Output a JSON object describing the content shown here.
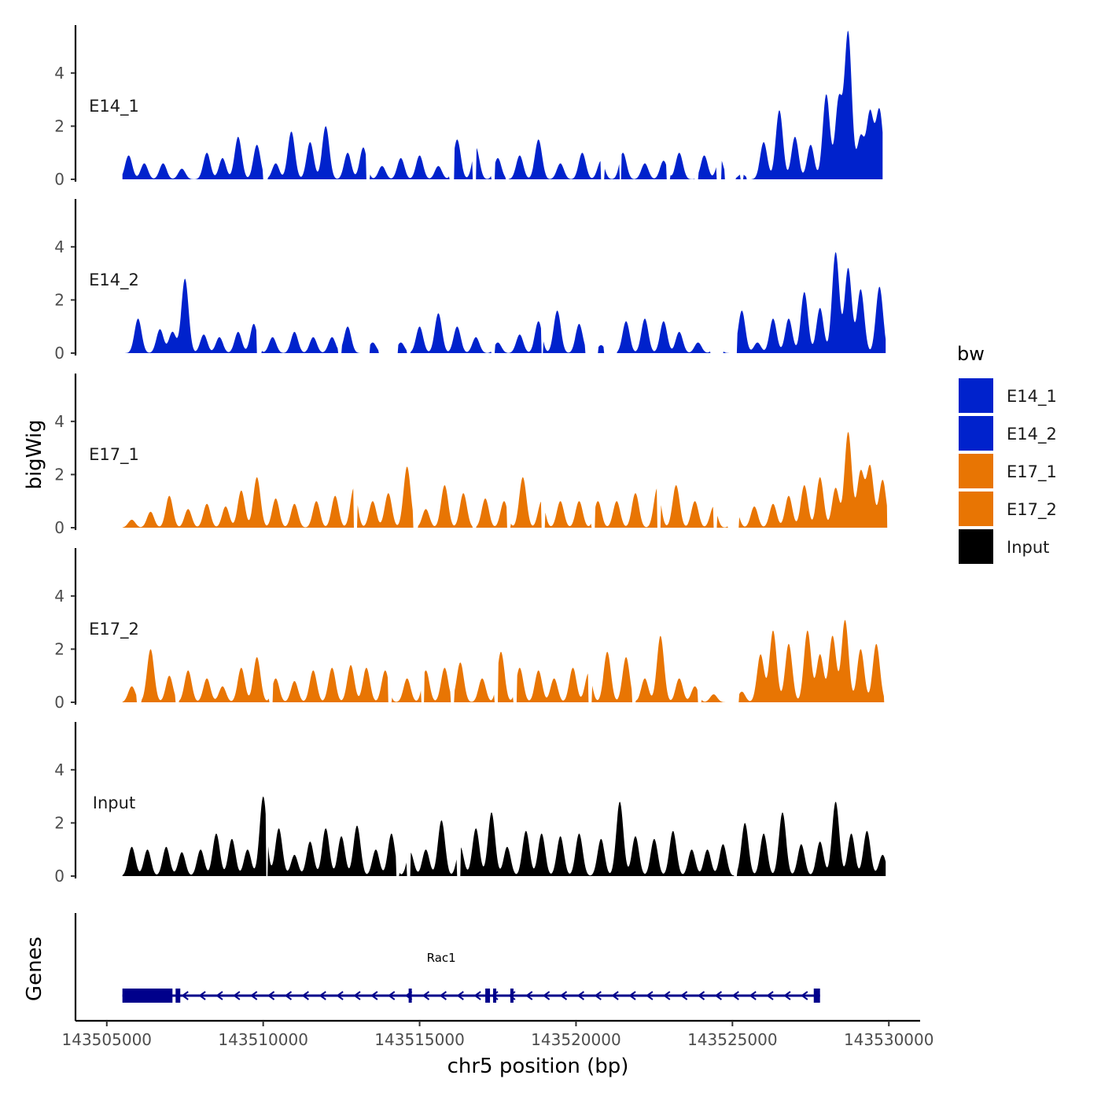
{
  "chart_data": {
    "type": "area",
    "xlabel": "chr5 position (bp)",
    "ylabel": "bigWig",
    "genes_label": "Genes",
    "xlim": [
      143504000,
      143531000
    ],
    "x_ticks": [
      143505000,
      143510000,
      143515000,
      143520000,
      143525000,
      143530000
    ],
    "ylim": [
      0,
      5.8
    ],
    "y_ticks": [
      0,
      2,
      4
    ],
    "legend": {
      "title": "bw",
      "items": [
        {
          "name": "E14_1",
          "color": "#0022CC"
        },
        {
          "name": "E14_2",
          "color": "#0022CC"
        },
        {
          "name": "E17_1",
          "color": "#E87503"
        },
        {
          "name": "E17_2",
          "color": "#E87503"
        },
        {
          "name": "Input",
          "color": "#000000"
        }
      ]
    },
    "series": [
      {
        "name": "E14_1",
        "color": "#0022CC",
        "x_start": 143505500,
        "x_end": 143529800,
        "peaks": [
          [
            143505700,
            0.9
          ],
          [
            143506200,
            0.6
          ],
          [
            143506800,
            0.6
          ],
          [
            143507400,
            0.4
          ],
          [
            143508200,
            1.0
          ],
          [
            143508700,
            0.8
          ],
          [
            143509200,
            1.6
          ],
          [
            143509800,
            1.3
          ],
          [
            143510400,
            0.6
          ],
          [
            143510900,
            1.8
          ],
          [
            143511500,
            1.4
          ],
          [
            143512000,
            2.0
          ],
          [
            143512700,
            1.0
          ],
          [
            143513200,
            1.2
          ],
          [
            143513800,
            0.5
          ],
          [
            143514400,
            0.8
          ],
          [
            143515000,
            0.9
          ],
          [
            143515600,
            0.5
          ],
          [
            143516200,
            1.5
          ],
          [
            143516800,
            1.2
          ],
          [
            143517500,
            0.8
          ],
          [
            143518200,
            0.9
          ],
          [
            143518800,
            1.5
          ],
          [
            143519500,
            0.6
          ],
          [
            143520200,
            1.0
          ],
          [
            143520800,
            0.7
          ],
          [
            143521500,
            1.0
          ],
          [
            143522200,
            0.6
          ],
          [
            143522800,
            0.7
          ],
          [
            143523300,
            1.0
          ],
          [
            143524100,
            0.9
          ],
          [
            143524600,
            0.8
          ],
          [
            143525300,
            0.2
          ],
          [
            143526000,
            1.4
          ],
          [
            143526500,
            2.6
          ],
          [
            143527000,
            1.6
          ],
          [
            143527500,
            1.3
          ],
          [
            143528000,
            3.2
          ],
          [
            143528400,
            3.0
          ],
          [
            143528700,
            5.5
          ],
          [
            143529100,
            1.6
          ],
          [
            143529400,
            2.5
          ],
          [
            143529700,
            2.6
          ]
        ],
        "gaps": [
          [
            143510000,
            143510150
          ],
          [
            143513300,
            143513400
          ],
          [
            143515950,
            143516100
          ],
          [
            143516700,
            143516800
          ],
          [
            143517300,
            143517400
          ],
          [
            143517750,
            143517850
          ],
          [
            143520800,
            143520900
          ],
          [
            143521400,
            143521450
          ],
          [
            143522900,
            143523000
          ],
          [
            143523800,
            143523900
          ],
          [
            143524500,
            143524650
          ],
          [
            143524750,
            143525100
          ],
          [
            143525250,
            143525350
          ],
          [
            143525450,
            143525600
          ]
        ]
      },
      {
        "name": "E14_2",
        "color": "#0022CC",
        "x_start": 143505500,
        "x_end": 143529900,
        "peaks": [
          [
            143506000,
            1.3
          ],
          [
            143506700,
            0.9
          ],
          [
            143507100,
            0.8
          ],
          [
            143507500,
            2.8
          ],
          [
            143508100,
            0.7
          ],
          [
            143508600,
            0.6
          ],
          [
            143509200,
            0.8
          ],
          [
            143509700,
            1.1
          ],
          [
            143510300,
            0.6
          ],
          [
            143511000,
            0.8
          ],
          [
            143511600,
            0.6
          ],
          [
            143512200,
            0.6
          ],
          [
            143512700,
            1.0
          ],
          [
            143513500,
            0.4
          ],
          [
            143514400,
            0.4
          ],
          [
            143515000,
            1.0
          ],
          [
            143515600,
            1.5
          ],
          [
            143516200,
            1.0
          ],
          [
            143516800,
            0.6
          ],
          [
            143517500,
            0.4
          ],
          [
            143518200,
            0.7
          ],
          [
            143518800,
            1.2
          ],
          [
            143519400,
            1.6
          ],
          [
            143520100,
            1.1
          ],
          [
            143520800,
            0.3
          ],
          [
            143521600,
            1.2
          ],
          [
            143522200,
            1.3
          ],
          [
            143522800,
            1.2
          ],
          [
            143523300,
            0.8
          ],
          [
            143523900,
            0.4
          ],
          [
            143524500,
            0.4
          ],
          [
            143525300,
            1.6
          ],
          [
            143525800,
            0.4
          ],
          [
            143526300,
            1.3
          ],
          [
            143526800,
            1.3
          ],
          [
            143527300,
            2.3
          ],
          [
            143527800,
            1.7
          ],
          [
            143528300,
            3.8
          ],
          [
            143528700,
            3.2
          ],
          [
            143529100,
            2.4
          ],
          [
            143529700,
            2.5
          ]
        ],
        "gaps": [
          [
            143509800,
            143509950
          ],
          [
            143512400,
            143512500
          ],
          [
            143513100,
            143513400
          ],
          [
            143513700,
            143514300
          ],
          [
            143514600,
            143514700
          ],
          [
            143517300,
            143517400
          ],
          [
            143518900,
            143518950
          ],
          [
            143520300,
            143520700
          ],
          [
            143520900,
            143521300
          ],
          [
            143524300,
            143524700
          ],
          [
            143524900,
            143525150
          ]
        ]
      },
      {
        "name": "E17_1",
        "color": "#E87503",
        "x_start": 143505500,
        "x_end": 143529950,
        "peaks": [
          [
            143505800,
            0.3
          ],
          [
            143506400,
            0.6
          ],
          [
            143507000,
            1.2
          ],
          [
            143507600,
            0.7
          ],
          [
            143508200,
            0.9
          ],
          [
            143508800,
            0.8
          ],
          [
            143509300,
            1.4
          ],
          [
            143509800,
            1.9
          ],
          [
            143510400,
            1.1
          ],
          [
            143511000,
            0.9
          ],
          [
            143511700,
            1.0
          ],
          [
            143512300,
            1.2
          ],
          [
            143512900,
            1.5
          ],
          [
            143513500,
            1.0
          ],
          [
            143514000,
            1.3
          ],
          [
            143514600,
            2.3
          ],
          [
            143515200,
            0.7
          ],
          [
            143515800,
            1.6
          ],
          [
            143516400,
            1.3
          ],
          [
            143517100,
            1.1
          ],
          [
            143517700,
            1.0
          ],
          [
            143518300,
            1.9
          ],
          [
            143518900,
            1.0
          ],
          [
            143519500,
            1.0
          ],
          [
            143520100,
            1.0
          ],
          [
            143520700,
            1.0
          ],
          [
            143521300,
            1.0
          ],
          [
            143521900,
            1.3
          ],
          [
            143522600,
            1.5
          ],
          [
            143523200,
            1.6
          ],
          [
            143523800,
            1.0
          ],
          [
            143524400,
            0.8
          ],
          [
            143525100,
            0.7
          ],
          [
            143525700,
            0.8
          ],
          [
            143526300,
            0.9
          ],
          [
            143526800,
            1.2
          ],
          [
            143527300,
            1.6
          ],
          [
            143527800,
            1.9
          ],
          [
            143528300,
            1.5
          ],
          [
            143528700,
            3.6
          ],
          [
            143529100,
            2.1
          ],
          [
            143529400,
            2.3
          ],
          [
            143529800,
            1.8
          ]
        ],
        "gaps": [
          [
            143512900,
            143513000
          ],
          [
            143514800,
            143514950
          ],
          [
            143516700,
            143516800
          ],
          [
            143517800,
            143517900
          ],
          [
            143518900,
            143519000
          ],
          [
            143520500,
            143520600
          ],
          [
            143522600,
            143522700
          ],
          [
            143524400,
            143524500
          ],
          [
            143524850,
            143525200
          ]
        ]
      },
      {
        "name": "E17_2",
        "color": "#E87503",
        "x_start": 143505500,
        "x_end": 143529850,
        "peaks": [
          [
            143505800,
            0.6
          ],
          [
            143506400,
            2.0
          ],
          [
            143507000,
            1.0
          ],
          [
            143507600,
            1.2
          ],
          [
            143508200,
            0.9
          ],
          [
            143508700,
            0.6
          ],
          [
            143509300,
            1.3
          ],
          [
            143509800,
            1.7
          ],
          [
            143510400,
            0.9
          ],
          [
            143511000,
            0.8
          ],
          [
            143511600,
            1.2
          ],
          [
            143512200,
            1.3
          ],
          [
            143512800,
            1.4
          ],
          [
            143513300,
            1.3
          ],
          [
            143513900,
            1.2
          ],
          [
            143514600,
            0.9
          ],
          [
            143515200,
            1.2
          ],
          [
            143515800,
            1.3
          ],
          [
            143516300,
            1.5
          ],
          [
            143517000,
            0.9
          ],
          [
            143517600,
            1.9
          ],
          [
            143518200,
            1.3
          ],
          [
            143518800,
            1.2
          ],
          [
            143519300,
            0.9
          ],
          [
            143519900,
            1.3
          ],
          [
            143520400,
            1.1
          ],
          [
            143521000,
            1.9
          ],
          [
            143521600,
            1.7
          ],
          [
            143522200,
            0.9
          ],
          [
            143522700,
            2.5
          ],
          [
            143523300,
            0.9
          ],
          [
            143523800,
            0.6
          ],
          [
            143524400,
            0.3
          ],
          [
            143525300,
            0.4
          ],
          [
            143525900,
            1.8
          ],
          [
            143526300,
            2.7
          ],
          [
            143526800,
            2.2
          ],
          [
            143527400,
            2.7
          ],
          [
            143527800,
            1.8
          ],
          [
            143528200,
            2.5
          ],
          [
            143528600,
            3.1
          ],
          [
            143529100,
            2.0
          ],
          [
            143529600,
            2.2
          ]
        ],
        "gaps": [
          [
            143505950,
            143506100
          ],
          [
            143507200,
            143507300
          ],
          [
            143510200,
            143510300
          ],
          [
            143514000,
            143514100
          ],
          [
            143515050,
            143515150
          ],
          [
            143516000,
            143516100
          ],
          [
            143517400,
            143517500
          ],
          [
            143518000,
            143518100
          ],
          [
            143520400,
            143520500
          ],
          [
            143521800,
            143521900
          ],
          [
            143523900,
            143524000
          ],
          [
            143524800,
            143525200
          ]
        ]
      },
      {
        "name": "Input",
        "color": "#000000",
        "x_start": 143505500,
        "x_end": 143529900,
        "peaks": [
          [
            143505800,
            1.1
          ],
          [
            143506300,
            1.0
          ],
          [
            143506900,
            1.1
          ],
          [
            143507400,
            0.9
          ],
          [
            143508000,
            1.0
          ],
          [
            143508500,
            1.6
          ],
          [
            143509000,
            1.4
          ],
          [
            143509500,
            1.0
          ],
          [
            143510000,
            3.0
          ],
          [
            143510500,
            1.8
          ],
          [
            143511000,
            0.8
          ],
          [
            143511500,
            1.3
          ],
          [
            143512000,
            1.8
          ],
          [
            143512500,
            1.5
          ],
          [
            143513000,
            1.9
          ],
          [
            143513600,
            1.0
          ],
          [
            143514100,
            1.6
          ],
          [
            143514700,
            0.9
          ],
          [
            143515200,
            1.0
          ],
          [
            143515700,
            2.1
          ],
          [
            143516300,
            1.1
          ],
          [
            143516800,
            1.8
          ],
          [
            143517300,
            2.4
          ],
          [
            143517800,
            1.1
          ],
          [
            143518400,
            1.7
          ],
          [
            143518900,
            1.6
          ],
          [
            143519500,
            1.5
          ],
          [
            143520100,
            1.6
          ],
          [
            143520800,
            1.4
          ],
          [
            143521400,
            2.8
          ],
          [
            143521900,
            1.5
          ],
          [
            143522500,
            1.4
          ],
          [
            143523100,
            1.7
          ],
          [
            143523700,
            1.0
          ],
          [
            143524200,
            1.0
          ],
          [
            143524700,
            1.2
          ],
          [
            143525400,
            2.0
          ],
          [
            143526000,
            1.6
          ],
          [
            143526600,
            2.4
          ],
          [
            143527200,
            1.2
          ],
          [
            143527800,
            1.3
          ],
          [
            143528300,
            2.8
          ],
          [
            143528800,
            1.6
          ],
          [
            143529300,
            1.7
          ],
          [
            143529800,
            0.8
          ]
        ],
        "gaps": [
          [
            143510100,
            143510150
          ],
          [
            143514250,
            143514350
          ],
          [
            143514600,
            143514700
          ],
          [
            143516200,
            143516300
          ],
          [
            143525050,
            143525150
          ]
        ]
      }
    ],
    "gene": {
      "name": "Rac1",
      "color": "#00008B",
      "start": 143505500,
      "end": 143527800,
      "strand": "-",
      "thick_exons": [
        [
          143505500,
          143507100
        ]
      ],
      "exons": [
        [
          143507200,
          143507350
        ],
        [
          143514650,
          143514750
        ],
        [
          143517100,
          143517250
        ],
        [
          143517350,
          143517450
        ],
        [
          143517900,
          143518000
        ],
        [
          143527600,
          143527800
        ]
      ]
    }
  }
}
